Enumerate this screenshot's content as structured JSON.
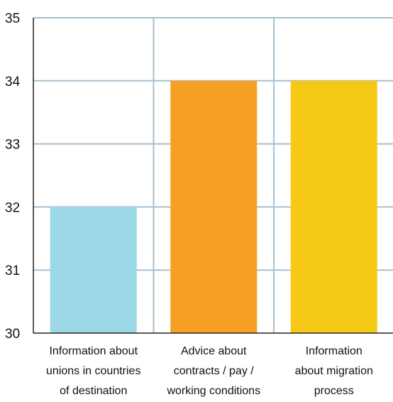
{
  "chart_data": {
    "type": "bar",
    "title": "",
    "xlabel": "",
    "ylabel": "",
    "ylim": [
      30,
      35
    ],
    "yticks": [
      30,
      31,
      32,
      33,
      34,
      35
    ],
    "grid": true,
    "categories": [
      "Information about unions in countries of destination",
      "Advice about contracts / pay / working conditions",
      "Information about migration process"
    ],
    "category_lines": [
      [
        "Information about",
        "unions in countries",
        "of destination"
      ],
      [
        "Advice about",
        "contracts / pay /",
        "working conditions"
      ],
      [
        "Information",
        "about migration",
        "process"
      ]
    ],
    "values": [
      32,
      34,
      34
    ],
    "colors": [
      "#9dd8e8",
      "#f6a023",
      "#f5c916"
    ],
    "grid_color": "#a9bfcf",
    "axis_color": "#222222"
  }
}
